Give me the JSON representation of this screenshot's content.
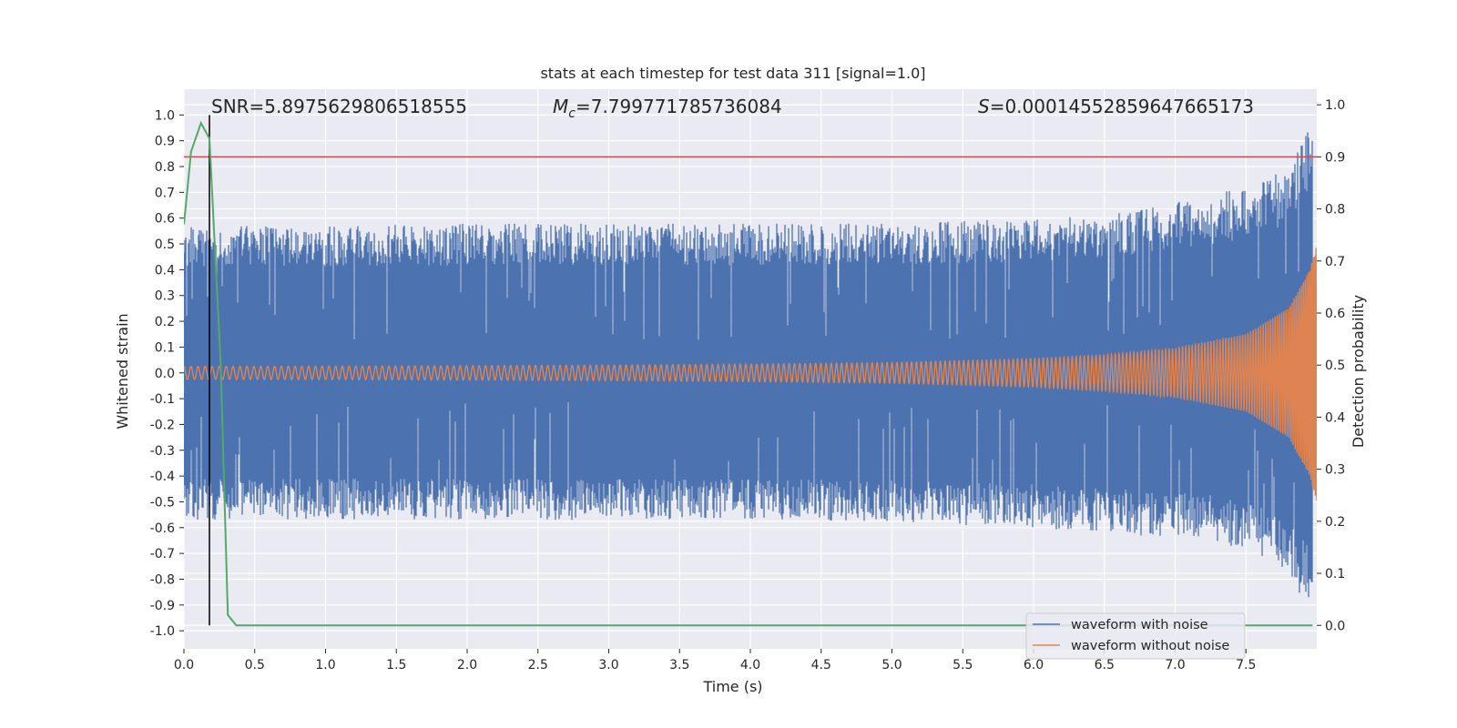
{
  "chart_data": {
    "type": "line",
    "title": "stats at each timestep for test data 311 [signal=1.0]",
    "xlabel": "Time (s)",
    "ylabel": "Whitened strain",
    "ylabel_right": "Detection probability",
    "xlim": [
      0,
      8
    ],
    "ylim": [
      -1.07,
      1.1
    ],
    "ylim_right": [
      -0.045,
      1.03
    ],
    "x_ticks": [
      0.0,
      0.5,
      1.0,
      1.5,
      2.0,
      2.5,
      3.0,
      3.5,
      4.0,
      4.5,
      5.0,
      5.5,
      6.0,
      6.5,
      7.0,
      7.5
    ],
    "x_tick_labels": [
      "0.0",
      "0.5",
      "1.0",
      "1.5",
      "2.0",
      "2.5",
      "3.0",
      "3.5",
      "4.0",
      "4.5",
      "5.0",
      "5.5",
      "6.0",
      "6.5",
      "7.0",
      "7.5"
    ],
    "y_ticks": [
      1.0,
      0.9,
      0.8,
      0.7,
      0.6,
      0.5,
      0.4,
      0.3,
      0.2,
      0.1,
      0.0,
      -0.1,
      -0.2,
      -0.3,
      -0.4,
      -0.5,
      -0.6,
      -0.7,
      -0.8,
      -0.9,
      -1.0
    ],
    "y_tick_labels": [
      "1.0",
      "0.9",
      "0.8",
      "0.7",
      "0.6",
      "0.5",
      "0.4",
      "0.3",
      "0.2",
      "0.1",
      "0.0",
      "-0.1",
      "-0.2",
      "-0.3",
      "-0.4",
      "-0.5",
      "-0.6",
      "-0.7",
      "-0.8",
      "-0.9",
      "-1.0"
    ],
    "y_right_ticks": [
      1.0,
      0.9,
      0.8,
      0.7,
      0.6,
      0.5,
      0.4,
      0.3,
      0.2,
      0.1,
      0.0
    ],
    "y_right_tick_labels": [
      "1.0",
      "0.9",
      "0.8",
      "0.7",
      "0.6",
      "0.5",
      "0.4",
      "0.3",
      "0.2",
      "0.1",
      "0.0"
    ],
    "annotations": {
      "snr": "SNR=5.8975629806518555",
      "mc_symbol": "M",
      "mc_subscript": "c",
      "mc_value": "=7.799771785736084",
      "s_symbol": "S",
      "s_value": "=0.00014552859647665173"
    },
    "threshold_right": 0.9,
    "marker_time": 0.18,
    "series": [
      {
        "name": "waveform with noise",
        "color": "#4c72b0",
        "description": "noise envelope",
        "envelope_x": [
          0.0,
          1.0,
          2.0,
          3.0,
          4.0,
          5.0,
          6.0,
          6.5,
          7.0,
          7.3,
          7.5,
          7.7,
          7.8,
          7.9,
          7.97
        ],
        "envelope_upper": [
          0.57,
          0.57,
          0.58,
          0.58,
          0.58,
          0.58,
          0.6,
          0.62,
          0.66,
          0.7,
          0.72,
          0.77,
          0.82,
          0.92,
          1.0
        ],
        "envelope_lower": [
          -0.57,
          -0.57,
          -0.57,
          -0.57,
          -0.57,
          -0.58,
          -0.6,
          -0.62,
          -0.64,
          -0.66,
          -0.7,
          -0.74,
          -0.8,
          -0.88,
          -0.98
        ]
      },
      {
        "name": "waveform without noise",
        "color": "#dd8452",
        "description": "chirp signal",
        "amp_x": [
          0.0,
          1.0,
          2.0,
          3.0,
          4.0,
          5.0,
          6.0,
          6.5,
          7.0,
          7.5,
          7.8,
          7.95,
          8.0
        ],
        "amp_y": [
          0.025,
          0.026,
          0.028,
          0.03,
          0.034,
          0.04,
          0.055,
          0.07,
          0.095,
          0.15,
          0.25,
          0.4,
          0.5
        ],
        "f0": 20,
        "tc": 8.1
      },
      {
        "name": "detection probability",
        "color": "#55a868",
        "axis": "right",
        "x": [
          0.0,
          0.05,
          0.12,
          0.18,
          0.26,
          0.31,
          0.37,
          7.97
        ],
        "y": [
          0.77,
          0.91,
          0.965,
          0.935,
          0.5,
          0.02,
          0.0,
          0.0
        ]
      }
    ],
    "legend": {
      "position": "lower-right",
      "entries": [
        {
          "label": "waveform with noise",
          "color": "#4c72b0"
        },
        {
          "label": "waveform without noise",
          "color": "#dd8452"
        }
      ]
    },
    "colors": {
      "plot_bg": "#eaeaf2",
      "grid": "#ffffff",
      "threshold": "#c44e52",
      "marker": "#000000",
      "noise": "#4c72b0",
      "signal": "#dd8452",
      "probability": "#55a868"
    }
  }
}
